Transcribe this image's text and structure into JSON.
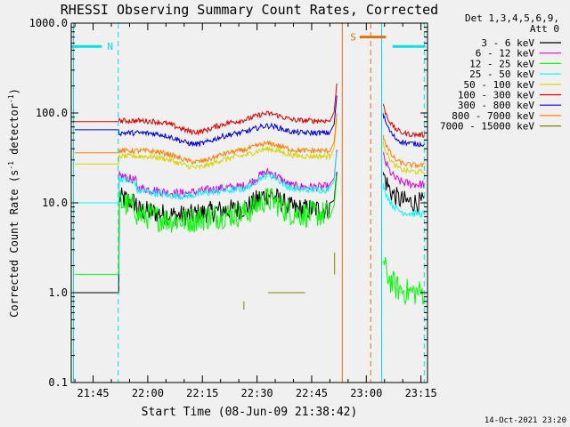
{
  "chart_data": {
    "type": "line",
    "title": "RHESSI Observing Summary Count Rates, Corrected",
    "xlabel": "Start Time (08-Jun-09 21:38:42)",
    "ylabel_main": "Corrected Count Rate (s",
    "ylabel_sup1": "-1",
    "ylabel_mid": " detector",
    "ylabel_sup2": "-1",
    "ylabel_end": ")",
    "y_scale": "log",
    "ylim": [
      0.1,
      1000
    ],
    "xlim_minutes": [
      21.65,
      23.28
    ],
    "y_ticks": [
      {
        "value": 0.1,
        "label": "0.1"
      },
      {
        "value": 1,
        "label": "1.0"
      },
      {
        "value": 10,
        "label": "10.0"
      },
      {
        "value": 100,
        "label": "100.0"
      },
      {
        "value": 1000,
        "label": "1000.0"
      }
    ],
    "x_ticks": [
      {
        "value": 21.75,
        "label": "21:45"
      },
      {
        "value": 22.0,
        "label": "22:00"
      },
      {
        "value": 22.25,
        "label": "22:15"
      },
      {
        "value": 22.5,
        "label": "22:30"
      },
      {
        "value": 22.75,
        "label": "22:45"
      },
      {
        "value": 23.0,
        "label": "23:00"
      },
      {
        "value": 23.25,
        "label": "23:15"
      }
    ],
    "legend_position": "right",
    "legend_header": [
      "Det 1,3,4,5,6,9,",
      "Att 0"
    ],
    "series": [
      {
        "name": "3 - 6 keV",
        "color": "#000000",
        "profile": "low",
        "base": 8.5,
        "pre": 1.0,
        "post": 10,
        "noise": 0.12
      },
      {
        "name": "6 - 12 keV",
        "color": "#e000e0",
        "profile": "mid",
        "base": 15,
        "pre": 10,
        "post": 16,
        "noise": 0.05
      },
      {
        "name": "12 - 25 keV",
        "color": "#00ff00",
        "profile": "low",
        "base": 7.5,
        "pre": 1.6,
        "post": 1.0,
        "noise": 0.15
      },
      {
        "name": "25 - 50 keV",
        "color": "#00ffff",
        "profile": "mid",
        "base": 14,
        "pre": 10,
        "post": 7.5,
        "noise": 0.04
      },
      {
        "name": "50 - 100 keV",
        "color": "#d4d400",
        "profile": "high",
        "base": 33,
        "pre": 27,
        "post": 22,
        "noise": 0.03
      },
      {
        "name": "100 - 300 keV",
        "color": "#e00000",
        "profile": "high",
        "base": 82,
        "pre": 80,
        "post": 57,
        "noise": 0.03
      },
      {
        "name": "300 - 800 keV",
        "color": "#0000e0",
        "profile": "high",
        "base": 60,
        "pre": 65,
        "post": 45,
        "noise": 0.03
      },
      {
        "name": "800 - 7000 keV",
        "color": "#ff8000",
        "profile": "high",
        "base": 38,
        "pre": 36,
        "post": 26,
        "noise": 0.03
      },
      {
        "name": "7000 - 15000 keV",
        "color": "#808000",
        "profile": "none",
        "base": 1.0,
        "pre": 1.0,
        "post": 1.0,
        "noise": 0
      }
    ],
    "bars": [
      {
        "label": "N",
        "color": "#00e0e0",
        "from": 21.65,
        "to": 21.79,
        "y": 550
      },
      {
        "label": "S",
        "color": "#e07010",
        "from": 22.97,
        "to": 23.09,
        "y": 700
      },
      {
        "label": "",
        "color": "#00e0e0",
        "from": 23.12,
        "to": 23.27,
        "y": 550
      }
    ],
    "vlines": [
      {
        "x": 21.66,
        "color": "#00e0e0",
        "style": "solid"
      },
      {
        "x": 21.865,
        "color": "#00e0e0",
        "style": "dashed"
      },
      {
        "x": 22.89,
        "color": "#e07010",
        "style": "solid"
      },
      {
        "x": 23.02,
        "color": "#e07010",
        "style": "dashed"
      },
      {
        "x": 23.07,
        "color": "#00e0e0",
        "style": "solid"
      },
      {
        "x": 23.265,
        "color": "#00e0e0",
        "style": "dashed"
      }
    ],
    "gap": [
      22.865,
      23.075
    ]
  },
  "footer": {
    "timestamp": "14-Oct-2021 23:20"
  },
  "colors": {
    "background": "#f0f0f0",
    "axes": "#000000"
  }
}
